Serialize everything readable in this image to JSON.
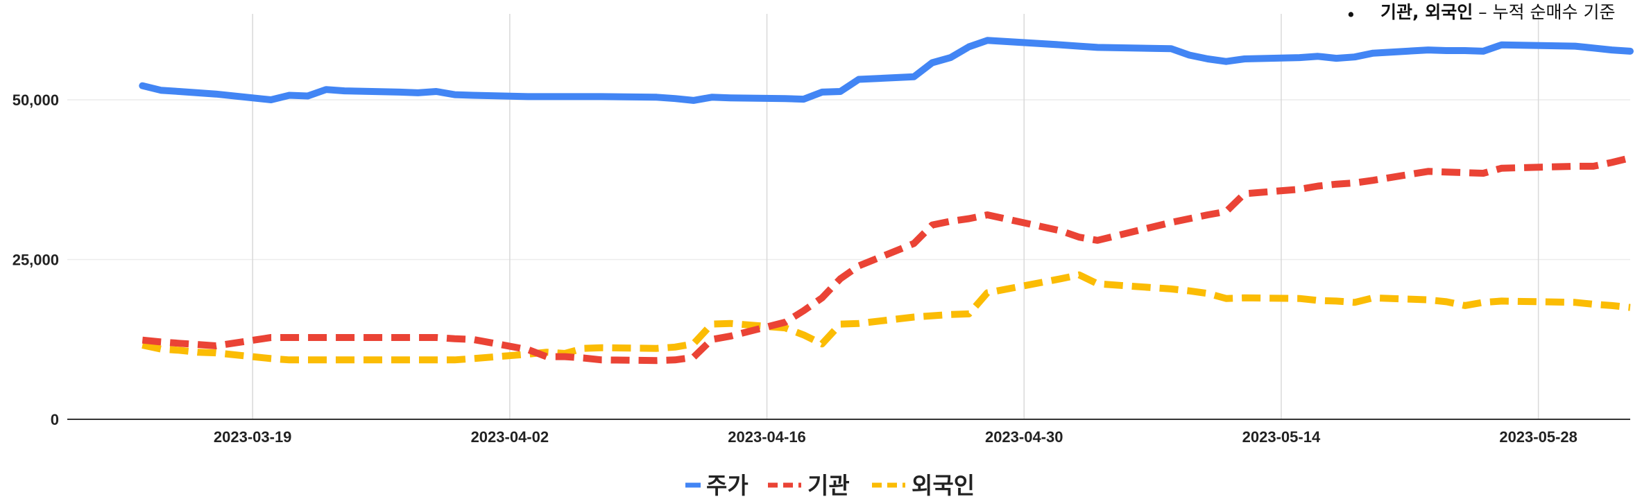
{
  "chart_data": {
    "type": "line",
    "title": "",
    "note": {
      "bullet": "•",
      "strong": "기관, 외국인",
      "rest": " – 누적 순매수 기준"
    },
    "x": [
      "2023-03-13",
      "2023-03-14",
      "2023-03-15",
      "2023-03-16",
      "2023-03-17",
      "2023-03-20",
      "2023-03-21",
      "2023-03-22",
      "2023-03-23",
      "2023-03-24",
      "2023-03-27",
      "2023-03-28",
      "2023-03-29",
      "2023-03-30",
      "2023-03-31",
      "2023-04-03",
      "2023-04-04",
      "2023-04-05",
      "2023-04-06",
      "2023-04-07",
      "2023-04-10",
      "2023-04-11",
      "2023-04-12",
      "2023-04-13",
      "2023-04-14",
      "2023-04-17",
      "2023-04-18",
      "2023-04-19",
      "2023-04-20",
      "2023-04-21",
      "2023-04-24",
      "2023-04-25",
      "2023-04-26",
      "2023-04-27",
      "2023-04-28",
      "2023-05-02",
      "2023-05-03",
      "2023-05-04",
      "2023-05-08",
      "2023-05-09",
      "2023-05-10",
      "2023-05-11",
      "2023-05-12",
      "2023-05-15",
      "2023-05-16",
      "2023-05-17",
      "2023-05-18",
      "2023-05-19",
      "2023-05-22",
      "2023-05-23",
      "2023-05-24",
      "2023-05-25",
      "2023-05-26",
      "2023-05-30",
      "2023-05-31",
      "2023-06-01",
      "2023-06-02"
    ],
    "xticks": [
      "2023-03-19",
      "2023-04-02",
      "2023-04-16",
      "2023-04-30",
      "2023-05-14",
      "2023-05-28"
    ],
    "ylim": [
      0,
      60000
    ],
    "yticks": [
      0,
      25000,
      50000
    ],
    "ytick_labels": [
      "0",
      "25,000",
      "50,000"
    ],
    "grid": true,
    "legend_position": "bottom",
    "series": [
      {
        "name": "주가",
        "color": "#4285f4",
        "dash": "solid",
        "values": [
          52200,
          51500,
          51300,
          51100,
          50900,
          50000,
          50700,
          50600,
          51600,
          51400,
          51200,
          51100,
          51300,
          50800,
          50700,
          50500,
          50500,
          50500,
          50500,
          50500,
          50400,
          50200,
          49900,
          50400,
          50300,
          50200,
          50100,
          51200,
          51300,
          53200,
          53600,
          55800,
          56600,
          58300,
          59300,
          58600,
          58400,
          58200,
          58000,
          57000,
          56400,
          56000,
          56400,
          56600,
          56800,
          56500,
          56700,
          57300,
          57800,
          57700,
          57700,
          57600,
          58600,
          58400,
          58100,
          57800,
          57600
        ]
      },
      {
        "name": "기관",
        "color": "#ea4335",
        "dash": "dashed",
        "values": [
          12400,
          12100,
          11900,
          11700,
          11500,
          12800,
          12800,
          12800,
          12800,
          12800,
          12800,
          12800,
          12800,
          12600,
          12500,
          10900,
          9800,
          9800,
          9600,
          9300,
          9200,
          9300,
          9700,
          12500,
          13000,
          15200,
          17000,
          19000,
          22000,
          24000,
          27500,
          30400,
          31000,
          31400,
          32000,
          29500,
          28500,
          28000,
          30800,
          31400,
          32000,
          32500,
          35300,
          36000,
          36500,
          36800,
          37000,
          37400,
          38800,
          38700,
          38600,
          38500,
          39300,
          39600,
          39600,
          40200,
          40900
        ]
      },
      {
        "name": "외국인",
        "color": "#fbbc04",
        "dash": "dashed",
        "values": [
          11600,
          11000,
          10800,
          10500,
          10400,
          9500,
          9300,
          9300,
          9300,
          9300,
          9300,
          9300,
          9300,
          9300,
          9500,
          10200,
          10500,
          10300,
          11100,
          11200,
          11100,
          11300,
          11800,
          14900,
          15000,
          14300,
          13200,
          11800,
          14900,
          15000,
          16000,
          16200,
          16400,
          16500,
          19800,
          22000,
          22600,
          21200,
          20400,
          20100,
          19700,
          18900,
          19000,
          18900,
          18600,
          18500,
          18300,
          19000,
          18700,
          18400,
          17800,
          18300,
          18500,
          18300,
          18000,
          17800,
          17500
        ]
      }
    ]
  }
}
